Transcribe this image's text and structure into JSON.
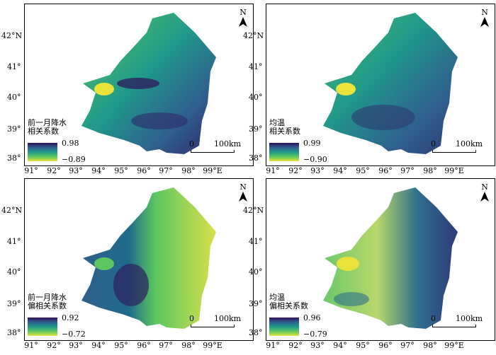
{
  "lat_labels": [
    "42°N",
    "41°",
    "40°",
    "39°",
    "38°"
  ],
  "lon_labels": [
    "91°",
    "92°",
    "93°",
    "94°",
    "95°",
    "96°",
    "97°",
    "98°",
    "99°E"
  ],
  "north_label": "N",
  "scale": {
    "zero": "0",
    "distance": "100km"
  },
  "colormap": [
    "#2e0f5c",
    "#2f5f8e",
    "#1f9a8a",
    "#5cc760",
    "#e8e23a"
  ],
  "panels": [
    {
      "title_line1": "前一月降水",
      "title_line2": "相关系数",
      "max": "0.98",
      "min": "−0.89"
    },
    {
      "title_line1": "均温",
      "title_line2": "相关系数",
      "max": "0.99",
      "min": "−0.90"
    },
    {
      "title_line1": "前一月降水",
      "title_line2": "偏相关系数",
      "max": "0.92",
      "min": "−0.72"
    },
    {
      "title_line1": "均温",
      "title_line2": "偏相关系数",
      "max": "0.96",
      "min": "−0.79"
    }
  ]
}
